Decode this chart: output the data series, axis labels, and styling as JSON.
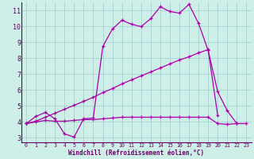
{
  "xlabel": "Windchill (Refroidissement éolien,°C)",
  "bg_color": "#ceeee8",
  "grid_color": "#9ecece",
  "line_color": "#aa00aa",
  "spine_color": "#660066",
  "xlim": [
    -0.5,
    23.5
  ],
  "ylim": [
    2.7,
    11.5
  ],
  "xticks": [
    0,
    1,
    2,
    3,
    4,
    5,
    6,
    7,
    8,
    9,
    10,
    11,
    12,
    13,
    14,
    15,
    16,
    17,
    18,
    19,
    20,
    21,
    22,
    23
  ],
  "yticks": [
    3,
    4,
    5,
    6,
    7,
    8,
    9,
    10,
    11
  ],
  "line1_x": [
    0,
    1,
    2,
    3,
    4,
    5,
    6,
    7,
    8,
    9,
    10,
    11,
    12,
    13,
    14,
    15,
    16,
    17,
    18,
    19,
    20,
    21,
    22,
    23
  ],
  "line1_y": [
    3.9,
    4.35,
    4.6,
    4.2,
    3.25,
    3.05,
    4.2,
    4.25,
    8.75,
    9.85,
    10.4,
    10.15,
    10.0,
    10.5,
    11.25,
    10.95,
    10.85,
    11.4,
    10.2,
    8.5,
    5.9,
    4.7,
    3.9,
    null
  ],
  "line2_x": [
    0,
    1,
    2,
    3,
    4,
    5,
    6,
    7,
    8,
    9,
    10,
    11,
    12,
    13,
    14,
    15,
    16,
    17,
    18,
    19,
    20,
    21,
    22,
    23
  ],
  "line2_y": [
    3.9,
    4.05,
    4.3,
    4.55,
    4.8,
    5.05,
    5.3,
    5.55,
    5.85,
    6.1,
    6.4,
    6.65,
    6.9,
    7.15,
    7.4,
    7.65,
    7.9,
    8.1,
    8.35,
    8.55,
    4.4,
    null,
    null,
    null
  ],
  "line3_x": [
    0,
    1,
    2,
    3,
    4,
    5,
    6,
    7,
    8,
    9,
    10,
    11,
    12,
    13,
    14,
    15,
    16,
    17,
    18,
    19,
    20,
    21,
    22,
    23
  ],
  "line3_y": [
    3.9,
    4.0,
    4.1,
    4.05,
    4.05,
    4.1,
    4.15,
    4.15,
    4.2,
    4.25,
    4.3,
    4.3,
    4.3,
    4.3,
    4.3,
    4.3,
    4.3,
    4.3,
    4.3,
    4.3,
    3.9,
    3.85,
    3.9,
    3.9
  ]
}
